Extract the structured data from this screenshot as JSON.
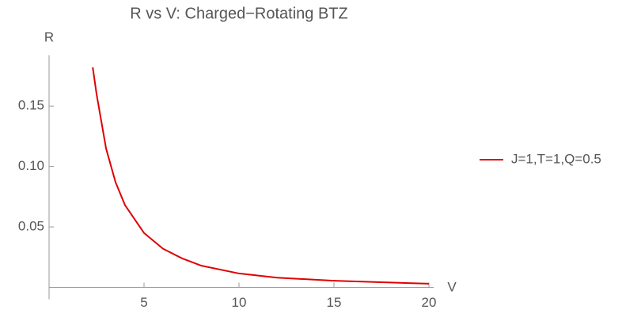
{
  "chart_data": {
    "type": "line",
    "title": "R vs V: Charged−Rotating BTZ",
    "x_label": "V",
    "y_label": "R",
    "x": [
      2.3,
      2.5,
      3,
      3.5,
      4,
      5,
      6,
      7,
      8,
      10,
      12,
      15,
      20
    ],
    "series": [
      {
        "name": "J=1,T=1,Q=0.5",
        "color": "#e00000",
        "values": [
          0.182,
          0.16,
          0.115,
          0.087,
          0.068,
          0.045,
          0.032,
          0.024,
          0.018,
          0.0115,
          0.008,
          0.0055,
          0.003
        ]
      }
    ],
    "xlim": [
      0,
      20.25
    ],
    "ylim": [
      0,
      0.192
    ],
    "xticks": [
      5,
      10,
      15,
      20
    ],
    "yticks": [
      0.05,
      {
        "value": 0.1,
        "label": "0.10"
      },
      0.15
    ],
    "legend": "right"
  }
}
